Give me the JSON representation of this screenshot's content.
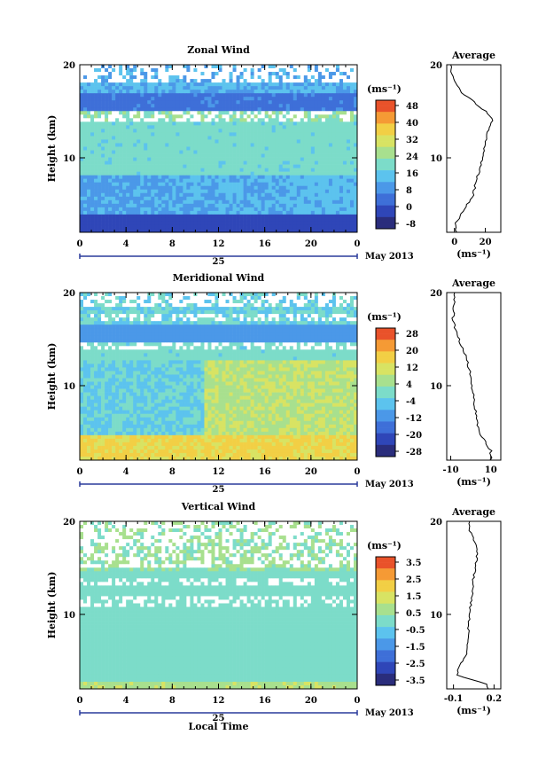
{
  "figure": {
    "xaxis_title": "Local Time",
    "date_label": "May 2013",
    "day_label": "25",
    "profile_xlabel": "(ms⁻¹)",
    "cbar_unit": "(ms⁻¹)"
  },
  "chart_data": [
    {
      "type": "heatmap",
      "title": "Zonal Wind",
      "ylabel": "Height (km)",
      "xlabel": "Local Time",
      "x_ticks": [
        "0",
        "4",
        "8",
        "12",
        "16",
        "20",
        "0"
      ],
      "y_ticks": [
        "20",
        "10"
      ],
      "xlim": [
        0,
        24
      ],
      "ylim": [
        2,
        20
      ],
      "colorbar": {
        "unit": "(ms⁻¹)",
        "ticks": [
          "48",
          "40",
          "32",
          "24",
          "16",
          "8",
          "0",
          "-8"
        ],
        "range": [
          -8,
          48
        ]
      },
      "description_profile": [
        {
          "height": 3,
          "value": 1
        },
        {
          "height": 6,
          "value": 12
        },
        {
          "height": 10,
          "value": 18
        },
        {
          "height": 13,
          "value": 22
        },
        {
          "height": 14,
          "value": 25
        },
        {
          "height": 15,
          "value": 20
        },
        {
          "height": 17,
          "value": 5
        },
        {
          "height": 19,
          "value": -2
        }
      ],
      "profile": {
        "title": "Average",
        "x_ticks": [
          "0",
          "20"
        ],
        "xlim": [
          -5,
          30
        ],
        "y_ticks": [
          "20",
          "10"
        ]
      }
    },
    {
      "type": "heatmap",
      "title": "Meridional Wind",
      "ylabel": "Height (km)",
      "xlabel": "Local Time",
      "x_ticks": [
        "0",
        "4",
        "8",
        "12",
        "16",
        "20",
        "0"
      ],
      "y_ticks": [
        "20",
        "10"
      ],
      "xlim": [
        0,
        24
      ],
      "ylim": [
        2,
        20
      ],
      "colorbar": {
        "unit": "(ms⁻¹)",
        "ticks": [
          "28",
          "20",
          "12",
          "4",
          "-4",
          "-12",
          "-20",
          "-28"
        ],
        "range": [
          -28,
          28
        ]
      },
      "description_profile": [
        {
          "height": 3,
          "value": 10
        },
        {
          "height": 5,
          "value": 4
        },
        {
          "height": 8,
          "value": 2
        },
        {
          "height": 11,
          "value": 0
        },
        {
          "height": 13,
          "value": -2
        },
        {
          "height": 15,
          "value": -6
        },
        {
          "height": 17,
          "value": -9
        },
        {
          "height": 19,
          "value": -8
        }
      ],
      "profile": {
        "title": "Average",
        "x_ticks": [
          "-10",
          "10"
        ],
        "xlim": [
          -12,
          15
        ],
        "y_ticks": [
          "20",
          "10"
        ]
      }
    },
    {
      "type": "heatmap",
      "title": "Vertical Wind",
      "ylabel": "Height (km)",
      "xlabel": "Local Time",
      "x_ticks": [
        "0",
        "4",
        "8",
        "12",
        "16",
        "20",
        "0"
      ],
      "y_ticks": [
        "20",
        "10"
      ],
      "xlim": [
        0,
        24
      ],
      "ylim": [
        2,
        20
      ],
      "colorbar": {
        "unit": "(ms⁻¹)",
        "ticks": [
          "3.5",
          "2.5",
          "1.5",
          "0.5",
          "-0.5",
          "-1.5",
          "-2.5",
          "-3.5"
        ],
        "range": [
          -3.5,
          3.5
        ]
      },
      "description_profile": [
        {
          "height": 2.5,
          "value": 0.15
        },
        {
          "height": 3.5,
          "value": -0.08
        },
        {
          "height": 6,
          "value": 0.0
        },
        {
          "height": 10,
          "value": 0.02
        },
        {
          "height": 14,
          "value": 0.05
        },
        {
          "height": 17,
          "value": 0.08
        },
        {
          "height": 19,
          "value": 0.02
        }
      ],
      "profile": {
        "title": "Average",
        "x_ticks": [
          "-0.1",
          "0.2"
        ],
        "xlim": [
          -0.15,
          0.25
        ],
        "y_ticks": [
          "20",
          "10"
        ]
      }
    }
  ]
}
